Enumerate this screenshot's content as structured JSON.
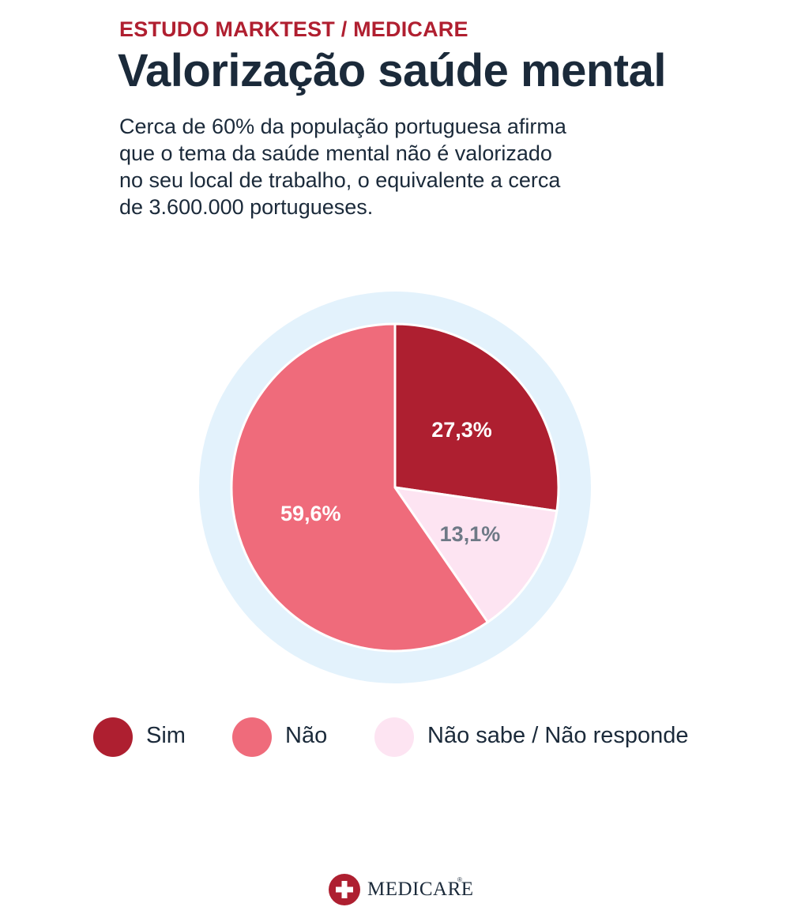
{
  "header": {
    "kicker": "ESTUDO MARKTEST / MEDICARE",
    "title": "Valorização saúde mental",
    "subtitle_lines": [
      "Cerca de 60% da população portuguesa afirma",
      "que o tema da saúde mental não é valorizado",
      "no seu local de trabalho, o equivalente a cerca",
      "de 3.600.000 portugueses."
    ]
  },
  "chart_data": {
    "type": "pie",
    "title": "Valorização saúde mental",
    "slices": [
      {
        "label": "Sim",
        "value": 27.3,
        "display": "27,3%",
        "color": "#ae1f30",
        "label_color": "#ffffff"
      },
      {
        "label": "Não sabe / Não responde",
        "value": 13.1,
        "display": "13,1%",
        "color": "#fde4f2",
        "label_color": "#6e7986"
      },
      {
        "label": "Não",
        "value": 59.6,
        "display": "59,6%",
        "color": "#ef6b7b",
        "label_color": "#ffffff"
      }
    ],
    "start_angle": "12 o'clock",
    "direction": "clockwise",
    "ring_color": "#e3f2fc",
    "legend": [
      "Sim",
      "Não",
      "Não sabe / Não responde"
    ],
    "legend_position": "bottom"
  },
  "legend": {
    "items": [
      {
        "label": "Sim",
        "color": "#ae1f30"
      },
      {
        "label": "Não",
        "color": "#ef6b7b"
      },
      {
        "label": "Não sabe / Não responde",
        "color": "#fde4f2"
      }
    ]
  },
  "brand": {
    "name": "MEDICARE",
    "reg": "®",
    "icon": "medical-cross-icon",
    "color": "#ae1f30"
  }
}
